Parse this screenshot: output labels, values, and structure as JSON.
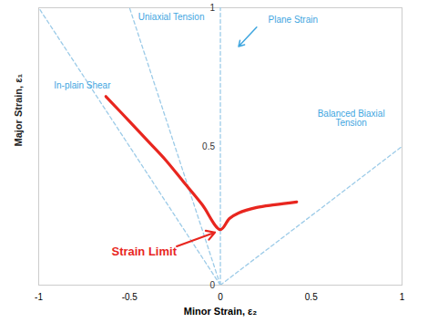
{
  "chart_data": {
    "type": "line",
    "x_label": "Minor Strain, ε₂",
    "y_label": "Major Strain, ε₁",
    "xlim": [
      -1,
      1
    ],
    "ylim": [
      0,
      1
    ],
    "xticks": [
      -1,
      -0.5,
      0,
      0.5,
      1
    ],
    "yticks": [
      0,
      0.5,
      1
    ],
    "grid": false,
    "series": [
      {
        "name": "Strain Limit",
        "color": "#e8261f",
        "line_style": "solid",
        "x": [
          -0.63,
          -0.5,
          -0.4,
          -0.3,
          -0.2,
          -0.1,
          0,
          0.05,
          0.1,
          0.2,
          0.3,
          0.42
        ],
        "values": [
          0.68,
          0.59,
          0.52,
          0.45,
          0.37,
          0.29,
          0.2,
          0.24,
          0.26,
          0.28,
          0.29,
          0.3
        ]
      },
      {
        "name": "In-plain Shear",
        "color": "#9ccbe8",
        "line_style": "dashed",
        "x": [
          0,
          -1
        ],
        "values": [
          0,
          1
        ]
      },
      {
        "name": "Uniaxial Tension",
        "color": "#9ccbe8",
        "line_style": "dashed",
        "x": [
          0,
          -0.5
        ],
        "values": [
          0,
          1
        ]
      },
      {
        "name": "Plane Strain",
        "color": "#9ccbe8",
        "line_style": "dashed",
        "x": [
          0,
          0
        ],
        "values": [
          0,
          1
        ]
      },
      {
        "name": "Balanced Biaxial Tension",
        "color": "#9ccbe8",
        "line_style": "dashed",
        "x": [
          0,
          1
        ],
        "values": [
          0,
          0.5
        ]
      }
    ]
  }
}
